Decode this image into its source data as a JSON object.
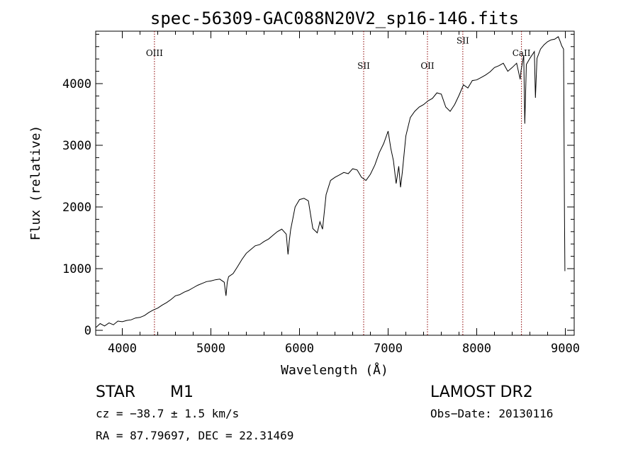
{
  "chart_data": {
    "type": "line",
    "title": "spec-56309-GAC088N20V2_sp16-146.fits",
    "xlabel": "Wavelength (Å)",
    "ylabel": "Flux (relative)",
    "xlim": [
      3700,
      9100
    ],
    "ylim": [
      -80,
      4850
    ],
    "x_ticks": [
      4000,
      5000,
      6000,
      7000,
      8000,
      9000
    ],
    "y_ticks": [
      0,
      1000,
      2000,
      3000,
      4000
    ],
    "x_tick_labels": [
      "4000",
      "5000",
      "6000",
      "7000",
      "8000",
      "9000"
    ],
    "y_tick_labels": [
      "0",
      "1000",
      "2000",
      "3000",
      "4000"
    ],
    "grid": false,
    "series": [
      {
        "color": "#000000",
        "x": [
          3705,
          3750,
          3800,
          3850,
          3900,
          3950,
          4000,
          4050,
          4100,
          4150,
          4200,
          4250,
          4300,
          4350,
          4400,
          4450,
          4500,
          4550,
          4600,
          4650,
          4700,
          4750,
          4800,
          4850,
          4900,
          4950,
          5000,
          5050,
          5100,
          5150,
          5170,
          5185,
          5200,
          5250,
          5300,
          5350,
          5400,
          5450,
          5500,
          5550,
          5600,
          5650,
          5700,
          5750,
          5800,
          5850,
          5870,
          5885,
          5900,
          5950,
          6000,
          6050,
          6100,
          6150,
          6200,
          6230,
          6260,
          6300,
          6350,
          6400,
          6450,
          6500,
          6550,
          6600,
          6650,
          6700,
          6750,
          6800,
          6850,
          6900,
          6950,
          7000,
          7030,
          7060,
          7090,
          7120,
          7140,
          7160,
          7200,
          7250,
          7300,
          7350,
          7400,
          7450,
          7500,
          7550,
          7600,
          7650,
          7700,
          7750,
          7800,
          7850,
          7900,
          7950,
          8000,
          8050,
          8100,
          8150,
          8200,
          8250,
          8300,
          8350,
          8400,
          8450,
          8490,
          8500,
          8530,
          8542,
          8560,
          8600,
          8650,
          8662,
          8680,
          8720,
          8760,
          8800,
          8840,
          8880,
          8920,
          8940,
          8960,
          8980,
          8990,
          8995
        ],
        "values": [
          50,
          110,
          70,
          120,
          90,
          150,
          140,
          160,
          170,
          200,
          210,
          240,
          290,
          330,
          360,
          410,
          450,
          500,
          560,
          580,
          620,
          650,
          690,
          730,
          760,
          790,
          800,
          820,
          830,
          780,
          560,
          780,
          870,
          920,
          1030,
          1150,
          1250,
          1310,
          1370,
          1390,
          1440,
          1480,
          1540,
          1600,
          1640,
          1560,
          1230,
          1450,
          1630,
          2000,
          2120,
          2140,
          2100,
          1650,
          1580,
          1760,
          1640,
          2200,
          2430,
          2480,
          2520,
          2560,
          2540,
          2620,
          2600,
          2480,
          2430,
          2530,
          2680,
          2880,
          3030,
          3230,
          2950,
          2750,
          2380,
          2660,
          2320,
          2560,
          3150,
          3450,
          3550,
          3620,
          3660,
          3720,
          3760,
          3850,
          3830,
          3620,
          3550,
          3660,
          3810,
          3980,
          3930,
          4050,
          4060,
          4100,
          4140,
          4190,
          4260,
          4290,
          4330,
          4200,
          4260,
          4330,
          4070,
          4210,
          4460,
          3350,
          4310,
          4410,
          4520,
          3770,
          4410,
          4560,
          4630,
          4680,
          4710,
          4720,
          4760,
          4690,
          4610,
          4560,
          1860,
          960
        ]
      }
    ],
    "annotations": [
      {
        "label": "OIII",
        "x": 4363,
        "label_y": 4450
      },
      {
        "label": "SII",
        "x": 6724,
        "label_y": 4240
      },
      {
        "label": "OII",
        "x": 7444,
        "label_y": 4240
      },
      {
        "label": "SII",
        "x": 7843,
        "label_y": 4650
      },
      {
        "label": "CaII",
        "x": 8505,
        "label_y": 4450
      }
    ],
    "annotation_color": "#8b0000"
  },
  "info": {
    "object_class": "STAR",
    "subclass": "M1",
    "survey": "LAMOST DR2",
    "cz": "cz = −38.7 ± 1.5 km/s",
    "obs_date": "Obs−Date: 20130116",
    "coords": "RA =  87.79697, DEC =  22.31469"
  }
}
